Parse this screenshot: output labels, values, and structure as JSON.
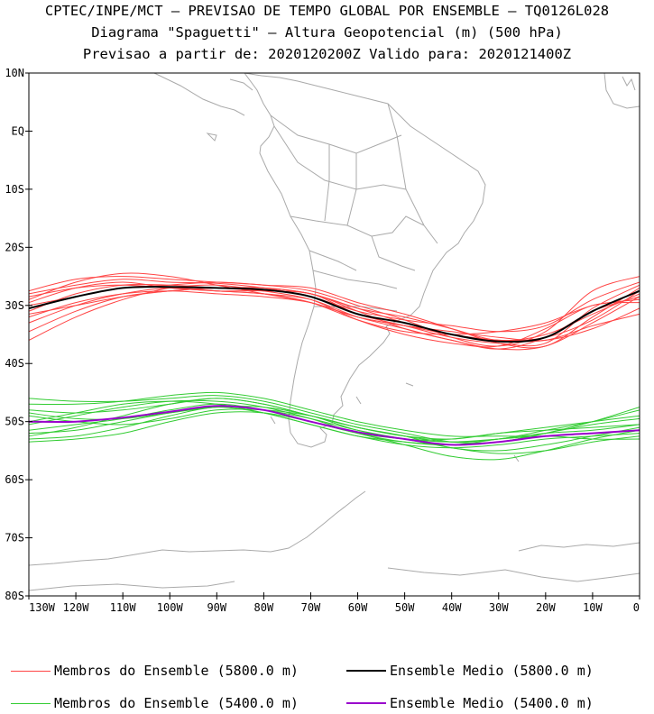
{
  "titles": {
    "line1": "CPTEC/INPE/MCT – PREVISAO DE TEMPO GLOBAL POR ENSEMBLE – TQ0126L028",
    "line2": "Diagrama \"Spaguetti\" – Altura Geopotencial (m) (500 hPa)",
    "line3": "Previsao a partir de: 2020120200Z  Valido para: 2020121400Z"
  },
  "legend": [
    {
      "label": "Membros do Ensemble (5800.0 m)",
      "color": "#ff4444",
      "width": 1
    },
    {
      "label": "Ensemble Medio (5800.0 m)",
      "color": "#000000",
      "width": 2
    },
    {
      "label": "Membros do Ensemble (5400.0 m)",
      "color": "#33cc33",
      "width": 1
    },
    {
      "label": "Ensemble Medio (5400.0 m)",
      "color": "#9900cc",
      "width": 2
    }
  ],
  "chart_data": {
    "type": "line",
    "x_unit": "longitude (degrees, negative = W)",
    "y_unit": "latitude (degrees, negative = S)",
    "xlim": [
      -130,
      0
    ],
    "ylim": [
      -80,
      10
    ],
    "xticks": [
      {
        "value": -130,
        "label": "130W"
      },
      {
        "value": -120,
        "label": "120W"
      },
      {
        "value": -110,
        "label": "110W"
      },
      {
        "value": -100,
        "label": "100W"
      },
      {
        "value": -90,
        "label": "90W"
      },
      {
        "value": -80,
        "label": "80W"
      },
      {
        "value": -70,
        "label": "70W"
      },
      {
        "value": -60,
        "label": "60W"
      },
      {
        "value": -50,
        "label": "50W"
      },
      {
        "value": -40,
        "label": "40W"
      },
      {
        "value": -30,
        "label": "30W"
      },
      {
        "value": -20,
        "label": "20W"
      },
      {
        "value": -10,
        "label": "10W"
      },
      {
        "value": 0,
        "label": "0"
      }
    ],
    "yticks": [
      {
        "value": 10,
        "label": "10N"
      },
      {
        "value": 0,
        "label": "EQ"
      },
      {
        "value": -10,
        "label": "10S"
      },
      {
        "value": -20,
        "label": "20S"
      },
      {
        "value": -30,
        "label": "30S"
      },
      {
        "value": -40,
        "label": "40S"
      },
      {
        "value": -50,
        "label": "50S"
      },
      {
        "value": -60,
        "label": "60S"
      },
      {
        "value": -70,
        "label": "70S"
      },
      {
        "value": -80,
        "label": "80S"
      }
    ],
    "grid": false,
    "x": [
      -130,
      -120,
      -110,
      -100,
      -90,
      -80,
      -70,
      -60,
      -50,
      -40,
      -30,
      -20,
      -10,
      0
    ],
    "mean_5800": [
      -30.5,
      -28.5,
      -27.0,
      -26.8,
      -27.0,
      -27.3,
      -28.5,
      -31.5,
      -33.0,
      -35.0,
      -36.2,
      -35.5,
      -31.0,
      -27.5
    ],
    "mean_5400": [
      -50.0,
      -50.0,
      -49.3,
      -48.3,
      -47.3,
      -48.0,
      -50.0,
      -51.8,
      -53.0,
      -54.0,
      -53.5,
      -52.5,
      -52.0,
      -51.5
    ],
    "members_5800": [
      [
        -28.0,
        -26.5,
        -25.5,
        -26.0,
        -26.2,
        -27.0,
        -28.5,
        -31.0,
        -32.5,
        -33.5,
        -34.5,
        -33.5,
        -29.0,
        -26.0
      ],
      [
        -33.0,
        -30.0,
        -28.0,
        -27.0,
        -27.5,
        -28.0,
        -29.0,
        -32.0,
        -34.0,
        -36.0,
        -37.5,
        -37.0,
        -33.0,
        -28.5
      ],
      [
        -31.0,
        -28.0,
        -26.5,
        -26.5,
        -27.0,
        -27.5,
        -28.0,
        -31.5,
        -33.5,
        -35.5,
        -36.5,
        -36.5,
        -30.5,
        -26.5
      ],
      [
        -29.5,
        -27.0,
        -26.0,
        -27.0,
        -27.5,
        -28.0,
        -29.5,
        -32.5,
        -34.5,
        -35.0,
        -34.5,
        -33.0,
        -30.0,
        -29.0
      ],
      [
        -34.5,
        -31.0,
        -28.5,
        -27.5,
        -27.0,
        -27.0,
        -28.0,
        -30.5,
        -32.0,
        -34.0,
        -36.0,
        -35.0,
        -31.5,
        -28.0
      ],
      [
        -27.5,
        -25.5,
        -25.0,
        -25.5,
        -26.0,
        -26.5,
        -27.5,
        -30.0,
        -32.5,
        -35.5,
        -37.0,
        -34.5,
        -27.5,
        -25.0
      ],
      [
        -32.0,
        -29.5,
        -28.0,
        -27.5,
        -28.0,
        -28.5,
        -29.5,
        -32.0,
        -33.5,
        -34.5,
        -35.5,
        -36.0,
        -34.0,
        -30.5
      ],
      [
        -30.0,
        -28.5,
        -27.0,
        -26.5,
        -26.0,
        -26.5,
        -27.0,
        -29.5,
        -31.5,
        -34.0,
        -36.5,
        -37.0,
        -32.0,
        -27.0
      ],
      [
        -36.0,
        -32.0,
        -29.0,
        -27.0,
        -26.5,
        -27.5,
        -29.0,
        -32.5,
        -35.0,
        -36.5,
        -37.0,
        -34.0,
        -30.0,
        -29.5
      ],
      [
        -28.5,
        -27.0,
        -26.5,
        -27.0,
        -27.5,
        -27.5,
        -28.0,
        -31.0,
        -34.0,
        -36.0,
        -37.5,
        -35.5,
        -31.0,
        -28.5
      ],
      [
        -31.5,
        -30.0,
        -28.5,
        -27.5,
        -27.0,
        -27.0,
        -28.0,
        -30.5,
        -33.0,
        -35.0,
        -36.0,
        -35.5,
        -32.5,
        -27.5
      ],
      [
        -29.0,
        -26.0,
        -24.5,
        -25.0,
        -26.5,
        -28.0,
        -29.5,
        -32.0,
        -33.5,
        -35.0,
        -36.0,
        -36.0,
        -33.5,
        -31.5
      ]
    ],
    "members_5400": [
      [
        -48.0,
        -48.5,
        -48.0,
        -47.0,
        -46.0,
        -47.0,
        -49.0,
        -51.0,
        -52.5,
        -53.0,
        -52.0,
        -51.0,
        -50.0,
        -49.0
      ],
      [
        -52.0,
        -51.5,
        -50.0,
        -48.5,
        -47.5,
        -48.5,
        -50.5,
        -52.5,
        -54.0,
        -54.5,
        -54.0,
        -53.0,
        -52.5,
        -52.0
      ],
      [
        -46.0,
        -46.5,
        -46.5,
        -46.0,
        -45.5,
        -46.5,
        -48.5,
        -50.5,
        -52.0,
        -53.5,
        -53.5,
        -52.0,
        -50.5,
        -49.5
      ],
      [
        -53.0,
        -52.5,
        -51.0,
        -49.0,
        -47.5,
        -48.0,
        -49.5,
        -51.5,
        -53.0,
        -54.5,
        -55.5,
        -55.0,
        -53.5,
        -52.5
      ],
      [
        -50.5,
        -49.0,
        -47.5,
        -46.5,
        -46.5,
        -47.5,
        -49.5,
        -52.0,
        -53.5,
        -54.0,
        -53.0,
        -52.0,
        -51.5,
        -50.5
      ],
      [
        -49.0,
        -50.0,
        -50.5,
        -49.5,
        -48.0,
        -48.0,
        -49.0,
        -51.0,
        -52.5,
        -53.5,
        -53.0,
        -51.5,
        -50.0,
        -48.0
      ],
      [
        -51.5,
        -50.5,
        -49.5,
        -48.0,
        -47.0,
        -48.0,
        -50.0,
        -52.0,
        -54.0,
        -56.0,
        -56.5,
        -55.0,
        -53.0,
        -51.5
      ],
      [
        -47.0,
        -47.0,
        -46.5,
        -45.5,
        -45.0,
        -46.0,
        -48.0,
        -50.0,
        -51.5,
        -52.5,
        -52.5,
        -52.5,
        -52.0,
        -51.5
      ],
      [
        -53.5,
        -53.0,
        -52.0,
        -50.0,
        -48.5,
        -48.5,
        -50.0,
        -52.0,
        -53.0,
        -53.5,
        -53.0,
        -52.5,
        -53.0,
        -53.0
      ],
      [
        -50.0,
        -48.5,
        -47.0,
        -46.5,
        -47.0,
        -48.5,
        -50.5,
        -52.5,
        -53.5,
        -54.0,
        -53.5,
        -52.0,
        -50.0,
        -47.5
      ],
      [
        -48.5,
        -49.5,
        -49.5,
        -48.5,
        -47.5,
        -47.5,
        -49.0,
        -51.5,
        -53.0,
        -53.0,
        -52.0,
        -51.5,
        -51.0,
        -50.5
      ],
      [
        -52.5,
        -51.0,
        -49.0,
        -47.0,
        -46.0,
        -47.0,
        -49.0,
        -51.0,
        -52.5,
        -54.5,
        -55.0,
        -54.0,
        -52.5,
        -51.0
      ]
    ]
  }
}
